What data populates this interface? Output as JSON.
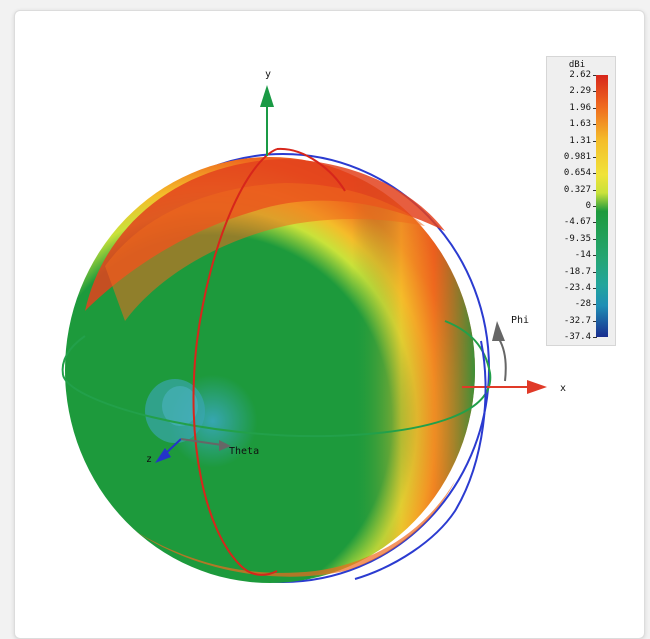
{
  "axes": {
    "y_label": "y",
    "x_label": "x",
    "z_label": "z",
    "theta_label": "Theta",
    "phi_label": "Phi"
  },
  "legend": {
    "unit": "dBi",
    "ticks": [
      "2.62",
      "2.29",
      "1.96",
      "1.63",
      "1.31",
      "0.981",
      "0.654",
      "0.327",
      "0",
      "-4.67",
      "-9.35",
      "-14",
      "-18.7",
      "-23.4",
      "-28",
      "-32.7",
      "-37.4"
    ],
    "colors": [
      "#d7261b",
      "#e3421d",
      "#ef6a1e",
      "#f39a22",
      "#f4bd2a",
      "#f0e33a",
      "#c9e23a",
      "#72c83d",
      "#1d9a3c",
      "#25a573",
      "#22a59c",
      "#1f8fb5",
      "#1d64b3",
      "#1c3f9f",
      "#1a2d8f"
    ]
  },
  "colors": {
    "sphere_main": "#1d9a3c",
    "ring_blue": "#2b3bd0",
    "ring_red": "#d7261b",
    "ring_green": "#22a04a",
    "axis_y": "#1a9a45",
    "axis_x": "#e03a28",
    "axis_z": "#2434c8",
    "axis_phi": "#777777"
  }
}
